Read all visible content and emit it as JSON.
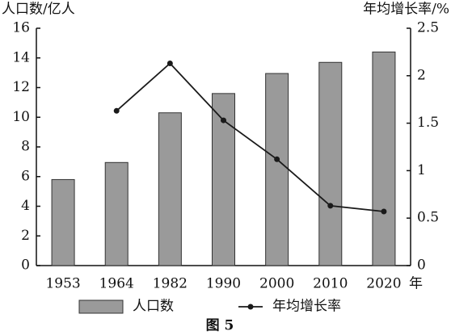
{
  "chart_data": {
    "type": "bar",
    "y_label": "人口数/亿人",
    "y2_label": "年均增长率/%",
    "x_label": "年",
    "caption": "图 5",
    "categories": [
      "1953",
      "1964",
      "1982",
      "1990",
      "2000",
      "2010",
      "2020"
    ],
    "series": [
      {
        "name": "人口数",
        "type": "bar",
        "color": "#9a9a9a",
        "values": [
          5.8,
          6.95,
          10.3,
          11.6,
          12.95,
          13.7,
          14.4
        ]
      },
      {
        "name": "年均增长率",
        "type": "line",
        "axis": "y2",
        "color": "#1a1a1a",
        "values": [
          null,
          1.63,
          2.13,
          1.53,
          1.12,
          0.63,
          0.57
        ]
      }
    ],
    "ylim": [
      0,
      16
    ],
    "yticks": [
      0,
      2,
      4,
      6,
      8,
      10,
      12,
      14,
      16
    ],
    "y2lim": [
      0,
      2.5
    ],
    "y2ticks": [
      0,
      0.5,
      1,
      1.5,
      2,
      2.5
    ],
    "grid": false
  }
}
